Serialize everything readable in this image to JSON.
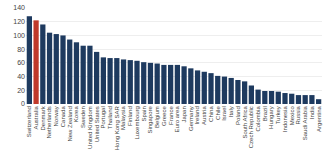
{
  "chart_data": {
    "type": "bar",
    "categories": [
      "Switzerland",
      "Australia",
      "Denmark",
      "Netherlands",
      "Norway",
      "Canada",
      "New Zealand",
      "Korea",
      "Sweden",
      "United Kingdom",
      "United States",
      "Portugal",
      "Thailand",
      "Hong Kong SAR",
      "Malaysia",
      "Finland",
      "Luxembourg",
      "Spain",
      "Singapore",
      "Belgium",
      "Greece",
      "France",
      "Euro area",
      "Japan",
      "Germany",
      "Ireland",
      "Austria",
      "China",
      "Chile",
      "Israel",
      "Italy",
      "Poland",
      "South Africa",
      "Czech Republic",
      "Colombia",
      "Brazil",
      "Hungary",
      "Turkey",
      "Indonesia",
      "Mexico",
      "Russia",
      "Saudi Arabia",
      "India",
      "Argentina"
    ],
    "values": [
      128,
      122,
      116,
      104,
      102,
      100,
      94,
      90,
      85,
      85,
      76,
      68,
      67,
      67,
      65,
      64,
      63,
      61,
      60,
      59,
      57,
      57,
      57,
      55,
      52,
      49,
      47,
      45,
      41,
      40,
      38,
      35,
      33,
      27,
      21,
      19,
      19,
      18,
      16,
      15,
      13,
      13,
      13,
      7
    ],
    "colors": [
      "#1e3a5f",
      "#c0392b",
      "#1e3a5f",
      "#1e3a5f",
      "#1e3a5f",
      "#1e3a5f",
      "#1e3a5f",
      "#1e3a5f",
      "#1e3a5f",
      "#1e3a5f",
      "#1e3a5f",
      "#1e3a5f",
      "#1e3a5f",
      "#1e3a5f",
      "#1e3a5f",
      "#1e3a5f",
      "#1e3a5f",
      "#1e3a5f",
      "#1e3a5f",
      "#1e3a5f",
      "#1e3a5f",
      "#1e3a5f",
      "#1e3a5f",
      "#1e3a5f",
      "#1e3a5f",
      "#1e3a5f",
      "#1e3a5f",
      "#1e3a5f",
      "#1e3a5f",
      "#1e3a5f",
      "#1e3a5f",
      "#1e3a5f",
      "#1e3a5f",
      "#1e3a5f",
      "#1e3a5f",
      "#1e3a5f",
      "#1e3a5f",
      "#1e3a5f",
      "#1e3a5f",
      "#1e3a5f",
      "#1e3a5f",
      "#1e3a5f",
      "#1e3a5f",
      "#1e3a5f"
    ],
    "ylim": [
      0,
      140
    ],
    "yticks": [
      0,
      20,
      40,
      60,
      80,
      100,
      120,
      140
    ],
    "grid": true
  }
}
